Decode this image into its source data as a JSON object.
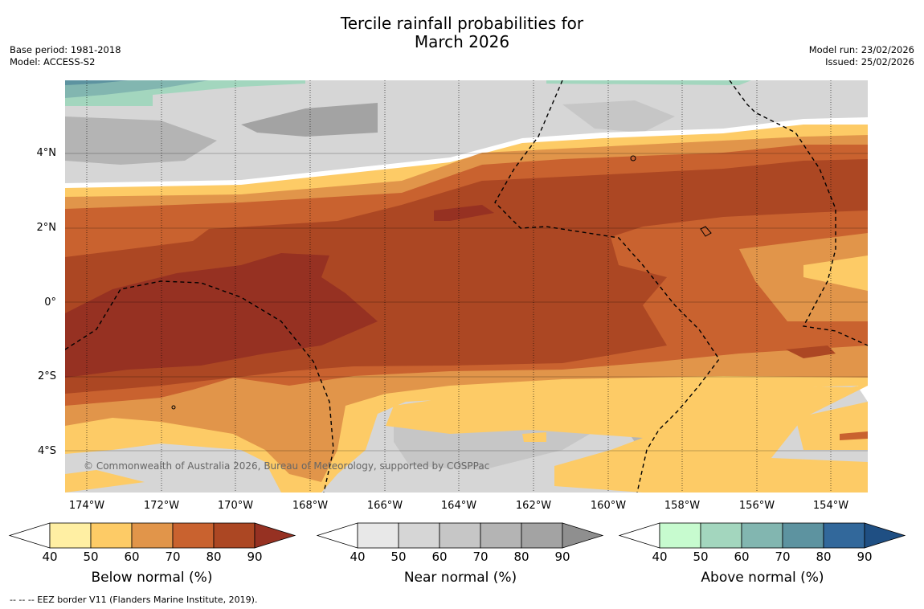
{
  "title_line1": "Tercile rainfall probabilities for",
  "title_line2": "March 2026",
  "meta_left": {
    "base_period": "Base period: 1981-2018",
    "model": "Model: ACCESS-S2"
  },
  "meta_right": {
    "model_run": "Model run: 23/02/2026",
    "issued": "Issued: 25/02/2026"
  },
  "map": {
    "copyright": "© Commonwealth of Australia 2026, Bureau of Meteorology, supported by COSPPac",
    "lat_labels": [
      "4°N",
      "2°N",
      "0°",
      "2°S",
      "4°S"
    ],
    "lon_labels": [
      "174°W",
      "172°W",
      "170°W",
      "168°W",
      "166°W",
      "164°W",
      "162°W",
      "160°W",
      "158°W",
      "156°W",
      "154°W"
    ]
  },
  "colorbars": {
    "below": {
      "title": "Below normal (%)",
      "ticks": [
        "40",
        "50",
        "60",
        "70",
        "80",
        "90"
      ],
      "colors": [
        "#ffefa3",
        "#fdcb66",
        "#e1954a",
        "#c9622f",
        "#ac4723",
        "#963122"
      ]
    },
    "near": {
      "title": "Near normal (%)",
      "ticks": [
        "40",
        "50",
        "60",
        "70",
        "80",
        "90"
      ],
      "colors": [
        "#e8e8e8",
        "#d6d6d6",
        "#c6c6c6",
        "#b4b4b4",
        "#a3a3a3",
        "#8f8f8f"
      ]
    },
    "above": {
      "title": "Above normal (%)",
      "ticks": [
        "40",
        "50",
        "60",
        "70",
        "80",
        "90"
      ],
      "colors": [
        "#c7fbcf",
        "#a3d6be",
        "#82b6b0",
        "#5d93a0",
        "#32689b",
        "#1f4f83"
      ]
    }
  },
  "footer": "--  --  -- EEZ border V11 (Flanders Marine Institute, 2019)."
}
